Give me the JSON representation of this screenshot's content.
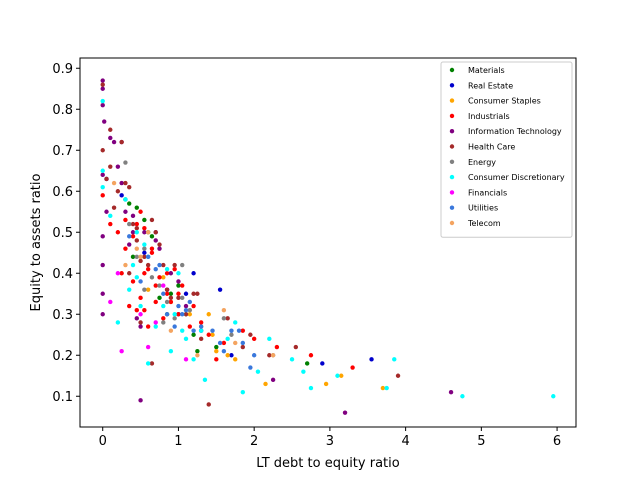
{
  "chart_data": {
    "type": "scatter",
    "xlabel": "LT debt to equity ratio",
    "ylabel": "Equity to assets ratio",
    "xlim": [
      -0.3,
      6.25
    ],
    "ylim": [
      0.025,
      0.925
    ],
    "xticks": [
      0,
      1,
      2,
      3,
      4,
      5,
      6
    ],
    "yticks": [
      0.1,
      0.2,
      0.3,
      0.4,
      0.5,
      0.6,
      0.7,
      0.8,
      0.9
    ],
    "ytick_labels": [
      "0.1",
      "0.2",
      "0.3",
      "0.4",
      "0.5",
      "0.6",
      "0.7",
      "0.8",
      "0.9"
    ],
    "grid": false,
    "legend_position": "top-right",
    "series": [
      {
        "name": "Materials",
        "color": "#008000",
        "points": [
          [
            0.3,
            0.58
          ],
          [
            0.45,
            0.56
          ],
          [
            0.55,
            0.53
          ],
          [
            0.6,
            0.5
          ],
          [
            0.75,
            0.34
          ],
          [
            0.85,
            0.3
          ],
          [
            1.0,
            0.37
          ],
          [
            1.1,
            0.3
          ],
          [
            1.2,
            0.25
          ],
          [
            1.25,
            0.21
          ],
          [
            1.5,
            0.22
          ],
          [
            2.7,
            0.18
          ],
          [
            0.65,
            0.49
          ],
          [
            0.4,
            0.44
          ],
          [
            0.9,
            0.35
          ],
          [
            0.35,
            0.57
          ]
        ]
      },
      {
        "name": "Real Estate",
        "color": "#0000cc",
        "points": [
          [
            0.25,
            0.59
          ],
          [
            0.55,
            0.45
          ],
          [
            0.85,
            0.36
          ],
          [
            1.1,
            0.35
          ],
          [
            1.2,
            0.4
          ],
          [
            1.55,
            0.36
          ],
          [
            1.7,
            0.2
          ],
          [
            2.9,
            0.18
          ],
          [
            3.55,
            0.19
          ],
          [
            0.05,
            0.63
          ],
          [
            0.7,
            0.5
          ],
          [
            1.0,
            0.3
          ]
        ]
      },
      {
        "name": "Consumer Staples",
        "color": "#ffa500",
        "points": [
          [
            0.6,
            0.36
          ],
          [
            0.9,
            0.33
          ],
          [
            1.15,
            0.3
          ],
          [
            1.3,
            0.27
          ],
          [
            1.45,
            0.25
          ],
          [
            1.5,
            0.21
          ],
          [
            1.65,
            0.2
          ],
          [
            1.75,
            0.19
          ],
          [
            2.15,
            0.13
          ],
          [
            2.95,
            0.13
          ],
          [
            3.15,
            0.15
          ],
          [
            3.7,
            0.12
          ],
          [
            1.4,
            0.3
          ],
          [
            0.8,
            0.39
          ]
        ]
      },
      {
        "name": "Industrials",
        "color": "#ff0000",
        "points": [
          [
            0.0,
            0.59
          ],
          [
            0.1,
            0.52
          ],
          [
            0.2,
            0.5
          ],
          [
            0.25,
            0.4
          ],
          [
            0.3,
            0.46
          ],
          [
            0.35,
            0.32
          ],
          [
            0.4,
            0.38
          ],
          [
            0.45,
            0.31
          ],
          [
            0.5,
            0.34
          ],
          [
            0.55,
            0.31
          ],
          [
            0.55,
            0.51
          ],
          [
            0.6,
            0.41
          ],
          [
            0.6,
            0.27
          ],
          [
            0.65,
            0.45
          ],
          [
            0.7,
            0.33
          ],
          [
            0.75,
            0.39
          ],
          [
            0.8,
            0.29
          ],
          [
            0.85,
            0.35
          ],
          [
            0.9,
            0.33
          ],
          [
            0.95,
            0.41
          ],
          [
            1.0,
            0.3
          ],
          [
            1.05,
            0.37
          ],
          [
            1.15,
            0.27
          ],
          [
            1.2,
            0.32
          ],
          [
            1.3,
            0.28
          ],
          [
            1.4,
            0.25
          ],
          [
            1.5,
            0.19
          ],
          [
            1.6,
            0.23
          ],
          [
            1.85,
            0.26
          ],
          [
            2.0,
            0.24
          ],
          [
            2.3,
            0.22
          ],
          [
            2.75,
            0.2
          ],
          [
            3.3,
            0.17
          ],
          [
            0.5,
            0.55
          ],
          [
            0.45,
            0.52
          ],
          [
            0.4,
            0.49
          ],
          [
            0.65,
            0.46
          ],
          [
            0.3,
            0.53
          ],
          [
            0.55,
            0.4
          ],
          [
            0.7,
            0.37
          ],
          [
            0.85,
            0.4
          ],
          [
            1.0,
            0.35
          ]
        ]
      },
      {
        "name": "Information Technology",
        "color": "#800080",
        "points": [
          [
            0.0,
            0.87
          ],
          [
            0.0,
            0.85
          ],
          [
            0.0,
            0.81
          ],
          [
            0.02,
            0.77
          ],
          [
            0.0,
            0.64
          ],
          [
            0.0,
            0.49
          ],
          [
            0.0,
            0.42
          ],
          [
            0.0,
            0.35
          ],
          [
            0.0,
            0.3
          ],
          [
            0.05,
            0.55
          ],
          [
            0.1,
            0.73
          ],
          [
            0.15,
            0.72
          ],
          [
            0.2,
            0.66
          ],
          [
            0.25,
            0.62
          ],
          [
            0.3,
            0.55
          ],
          [
            0.35,
            0.47
          ],
          [
            0.4,
            0.5
          ],
          [
            0.45,
            0.29
          ],
          [
            0.5,
            0.27
          ],
          [
            0.5,
            0.09
          ],
          [
            0.55,
            0.5
          ],
          [
            0.7,
            0.48
          ],
          [
            0.75,
            0.46
          ],
          [
            0.9,
            0.4
          ],
          [
            1.0,
            0.38
          ],
          [
            1.1,
            0.32
          ],
          [
            1.3,
            0.26
          ],
          [
            2.25,
            0.14
          ],
          [
            3.2,
            0.06
          ],
          [
            4.6,
            0.11
          ],
          [
            0.25,
            0.72
          ],
          [
            0.4,
            0.54
          ]
        ]
      },
      {
        "name": "Health Care",
        "color": "#a52a2a",
        "points": [
          [
            0.0,
            0.86
          ],
          [
            0.0,
            0.7
          ],
          [
            0.05,
            0.63
          ],
          [
            0.1,
            0.75
          ],
          [
            0.1,
            0.66
          ],
          [
            0.15,
            0.56
          ],
          [
            0.2,
            0.6
          ],
          [
            0.25,
            0.72
          ],
          [
            0.3,
            0.62
          ],
          [
            0.35,
            0.61
          ],
          [
            0.4,
            0.52
          ],
          [
            0.45,
            0.48
          ],
          [
            0.5,
            0.28
          ],
          [
            0.55,
            0.44
          ],
          [
            0.6,
            0.42
          ],
          [
            0.65,
            0.18
          ],
          [
            0.7,
            0.5
          ],
          [
            0.75,
            0.47
          ],
          [
            0.8,
            0.42
          ],
          [
            0.85,
            0.36
          ],
          [
            0.9,
            0.34
          ],
          [
            0.95,
            0.42
          ],
          [
            1.0,
            0.34
          ],
          [
            1.1,
            0.3
          ],
          [
            1.2,
            0.35
          ],
          [
            1.25,
            0.35
          ],
          [
            1.3,
            0.24
          ],
          [
            1.4,
            0.08
          ],
          [
            1.65,
            0.29
          ],
          [
            1.85,
            0.22
          ],
          [
            1.95,
            0.25
          ],
          [
            2.2,
            0.2
          ],
          [
            2.55,
            0.22
          ],
          [
            3.9,
            0.15
          ],
          [
            0.35,
            0.4
          ],
          [
            0.5,
            0.43
          ],
          [
            0.45,
            0.51
          ],
          [
            0.65,
            0.53
          ]
        ]
      },
      {
        "name": "Energy",
        "color": "#808080",
        "points": [
          [
            0.3,
            0.67
          ],
          [
            0.35,
            0.52
          ],
          [
            0.45,
            0.44
          ],
          [
            0.55,
            0.46
          ],
          [
            0.65,
            0.39
          ],
          [
            0.75,
            0.37
          ],
          [
            0.85,
            0.33
          ],
          [
            0.95,
            0.29
          ],
          [
            1.05,
            0.34
          ],
          [
            1.05,
            0.42
          ],
          [
            1.15,
            0.31
          ],
          [
            1.6,
            0.29
          ],
          [
            1.7,
            0.25
          ],
          [
            2.25,
            0.2
          ],
          [
            0.55,
            0.36
          ],
          [
            0.8,
            0.28
          ]
        ]
      },
      {
        "name": "Consumer Discretionary",
        "color": "#00ffff",
        "points": [
          [
            0.0,
            0.82
          ],
          [
            0.0,
            0.65
          ],
          [
            0.0,
            0.61
          ],
          [
            0.1,
            0.54
          ],
          [
            0.2,
            0.28
          ],
          [
            0.3,
            0.58
          ],
          [
            0.35,
            0.36
          ],
          [
            0.4,
            0.42
          ],
          [
            0.45,
            0.39
          ],
          [
            0.5,
            0.32
          ],
          [
            0.55,
            0.47
          ],
          [
            0.6,
            0.18
          ],
          [
            0.7,
            0.27
          ],
          [
            0.8,
            0.32
          ],
          [
            0.9,
            0.21
          ],
          [
            0.95,
            0.3
          ],
          [
            1.0,
            0.4
          ],
          [
            1.05,
            0.26
          ],
          [
            1.1,
            0.24
          ],
          [
            1.2,
            0.19
          ],
          [
            1.3,
            0.26
          ],
          [
            1.35,
            0.14
          ],
          [
            1.65,
            0.24
          ],
          [
            1.75,
            0.28
          ],
          [
            1.85,
            0.11
          ],
          [
            2.05,
            0.16
          ],
          [
            2.2,
            0.24
          ],
          [
            2.5,
            0.19
          ],
          [
            2.65,
            0.16
          ],
          [
            2.75,
            0.12
          ],
          [
            3.1,
            0.15
          ],
          [
            3.75,
            0.12
          ],
          [
            3.85,
            0.19
          ],
          [
            4.75,
            0.1
          ],
          [
            5.95,
            0.1
          ],
          [
            0.6,
            0.44
          ],
          [
            0.45,
            0.5
          ],
          [
            0.85,
            0.41
          ]
        ]
      },
      {
        "name": "Financials",
        "color": "#ff00ff",
        "points": [
          [
            0.1,
            0.33
          ],
          [
            0.25,
            0.21
          ],
          [
            0.5,
            0.3
          ],
          [
            0.7,
            0.28
          ],
          [
            0.8,
            0.37
          ],
          [
            1.1,
            0.19
          ],
          [
            0.2,
            0.4
          ],
          [
            0.6,
            0.22
          ]
        ]
      },
      {
        "name": "Utilities",
        "color": "#3a78dc",
        "points": [
          [
            0.35,
            0.49
          ],
          [
            0.5,
            0.38
          ],
          [
            0.6,
            0.44
          ],
          [
            0.7,
            0.41
          ],
          [
            0.8,
            0.35
          ],
          [
            0.85,
            0.3
          ],
          [
            0.95,
            0.27
          ],
          [
            1.05,
            0.3
          ],
          [
            1.15,
            0.33
          ],
          [
            1.2,
            0.26
          ],
          [
            1.3,
            0.27
          ],
          [
            1.45,
            0.26
          ],
          [
            1.55,
            0.23
          ],
          [
            1.6,
            0.21
          ],
          [
            1.7,
            0.26
          ],
          [
            1.8,
            0.26
          ],
          [
            1.85,
            0.23
          ],
          [
            1.95,
            0.17
          ],
          [
            2.0,
            0.2
          ],
          [
            1.0,
            0.32
          ],
          [
            0.75,
            0.42
          ],
          [
            1.1,
            0.31
          ]
        ]
      },
      {
        "name": "Telecom",
        "color": "#f4a460",
        "points": [
          [
            0.15,
            0.62
          ],
          [
            0.3,
            0.42
          ],
          [
            0.5,
            0.44
          ],
          [
            0.6,
            0.5
          ],
          [
            0.9,
            0.26
          ],
          [
            1.25,
            0.2
          ],
          [
            1.6,
            0.31
          ],
          [
            1.75,
            0.23
          ],
          [
            2.25,
            0.2
          ],
          [
            0.45,
            0.46
          ]
        ]
      }
    ]
  }
}
